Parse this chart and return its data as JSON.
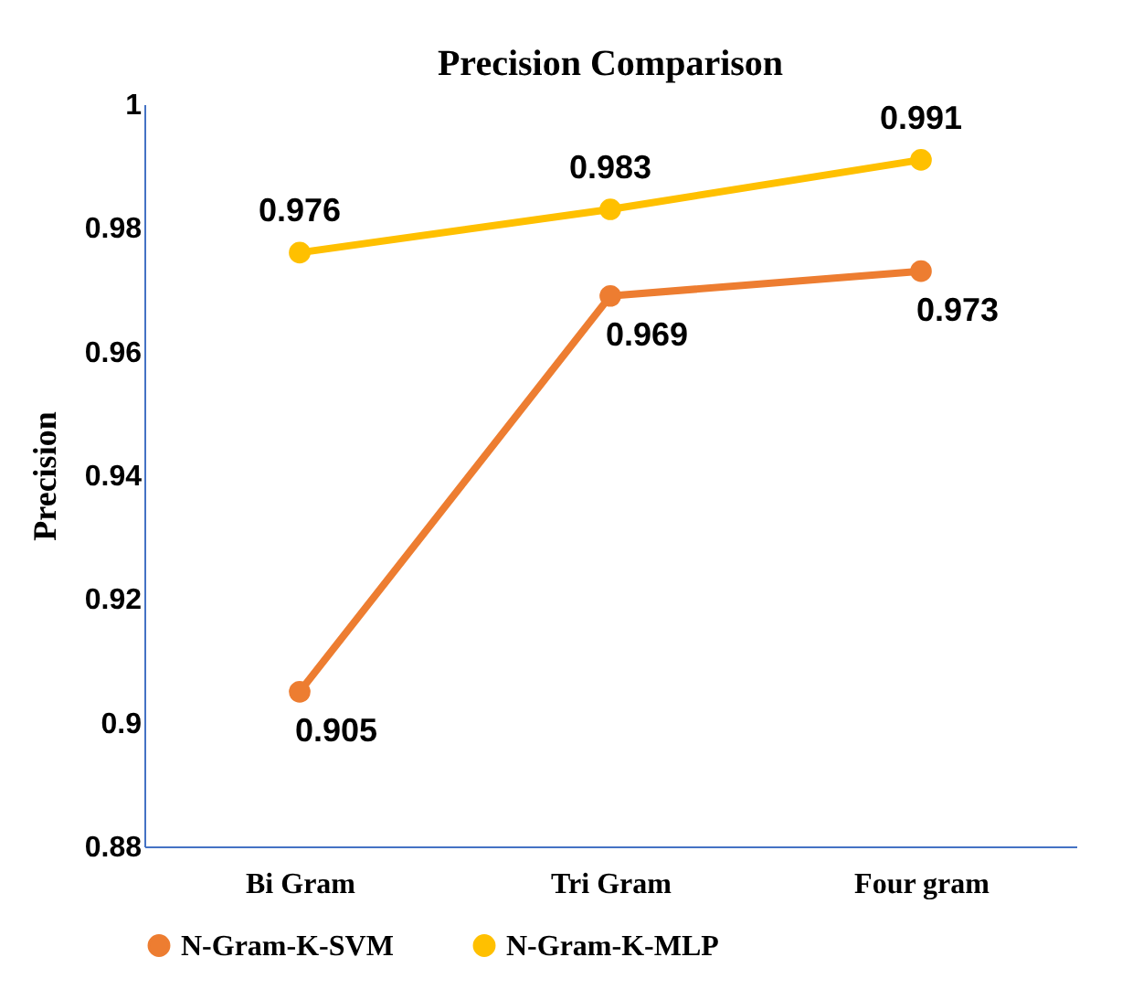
{
  "chart_data": {
    "type": "line",
    "title": "Precision Comparison",
    "ylabel": "Precision",
    "categories": [
      "Bi Gram",
      "Tri Gram",
      "Four gram"
    ],
    "series": [
      {
        "name": "N-Gram-K-SVM",
        "color": "#ed7d31",
        "values": [
          0.905,
          0.969,
          0.973
        ]
      },
      {
        "name": "N-Gram-K-MLP",
        "color": "#ffc000",
        "values": [
          0.976,
          0.983,
          0.991
        ]
      }
    ],
    "ylim": [
      0.88,
      1
    ],
    "yticks": [
      0.88,
      0.9,
      0.92,
      0.94,
      0.96,
      0.98,
      1
    ],
    "grid": false,
    "legend": "bottom",
    "marker": "circle",
    "line_style": "solid",
    "data_labels": true
  }
}
